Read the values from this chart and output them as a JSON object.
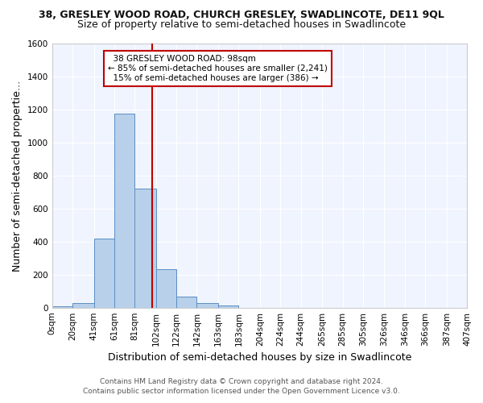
{
  "title": "38, GRESLEY WOOD ROAD, CHURCH GRESLEY, SWADLINCOTE, DE11 9QL",
  "subtitle": "Size of property relative to semi-detached houses in Swadlincote",
  "xlabel": "Distribution of semi-detached houses by size in Swadlincote",
  "ylabel": "Number of semi-detached propertie…",
  "bin_edges": [
    0,
    20,
    41,
    61,
    81,
    102,
    122,
    142,
    163,
    183,
    204,
    224,
    244,
    265,
    285,
    305,
    326,
    346,
    366,
    387,
    407
  ],
  "bin_labels": [
    "0sqm",
    "20sqm",
    "41sqm",
    "61sqm",
    "81sqm",
    "102sqm",
    "122sqm",
    "142sqm",
    "163sqm",
    "183sqm",
    "204sqm",
    "224sqm",
    "244sqm",
    "265sqm",
    "285sqm",
    "305sqm",
    "326sqm",
    "346sqm",
    "366sqm",
    "387sqm",
    "407sqm"
  ],
  "counts": [
    10,
    28,
    420,
    1175,
    720,
    235,
    65,
    28,
    12,
    0,
    0,
    0,
    0,
    0,
    0,
    0,
    0,
    0,
    0,
    0
  ],
  "bar_color": "#b8d0ea",
  "bar_edge_color": "#5b8ec4",
  "property_line_x": 98,
  "vline_color": "#c00000",
  "annotation_text": "  38 GRESLEY WOOD ROAD: 98sqm\n← 85% of semi-detached houses are smaller (2,241)\n  15% of semi-detached houses are larger (386) →",
  "annotation_box_color": "#ffffff",
  "annotation_box_edge": "#c00000",
  "ylim": [
    0,
    1600
  ],
  "yticks": [
    0,
    200,
    400,
    600,
    800,
    1000,
    1200,
    1400,
    1600
  ],
  "footer_line1": "Contains HM Land Registry data © Crown copyright and database right 2024.",
  "footer_line2": "Contains public sector information licensed under the Open Government Licence v3.0.",
  "bg_color": "#ffffff",
  "plot_bg_color": "#f0f4ff",
  "title_fontsize": 9,
  "subtitle_fontsize": 9,
  "axis_label_fontsize": 9,
  "tick_fontsize": 7.5,
  "annotation_fontsize": 7.5
}
